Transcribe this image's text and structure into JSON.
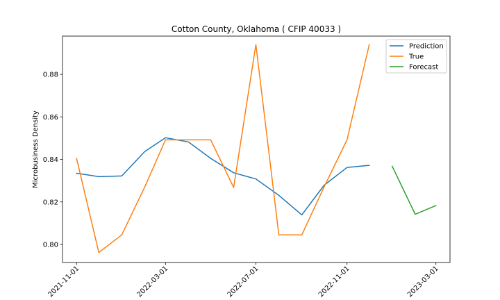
{
  "chart_data": {
    "type": "line",
    "title": "Cotton County, Oklahoma ( CFIP 40033 )",
    "xlabel": "",
    "ylabel": "Microbusiness Density",
    "xlim": [
      "2021-10-13",
      "2023-03-20"
    ],
    "ylim": [
      0.7915,
      0.898
    ],
    "x_ticks": [
      "2021-11-01",
      "2022-03-01",
      "2022-07-01",
      "2022-11-01",
      "2023-03-01"
    ],
    "y_ticks": [
      0.8,
      0.82,
      0.84,
      0.86,
      0.88
    ],
    "y_tick_labels": [
      "0.80",
      "0.82",
      "0.84",
      "0.86",
      "0.88"
    ],
    "legend_placement": "top-right",
    "grid": false,
    "series": [
      {
        "name": "Prediction",
        "color": "#1f77b4",
        "x": [
          "2021-11-01",
          "2021-12-01",
          "2022-01-01",
          "2022-02-01",
          "2022-03-01",
          "2022-04-01",
          "2022-05-01",
          "2022-06-01",
          "2022-07-01",
          "2022-08-01",
          "2022-09-01",
          "2022-10-01",
          "2022-11-01",
          "2022-12-01"
        ],
        "values": [
          0.8335,
          0.8319,
          0.8322,
          0.8437,
          0.8502,
          0.8482,
          0.8405,
          0.8337,
          0.8308,
          0.8231,
          0.8139,
          0.8278,
          0.8362,
          0.8372
        ]
      },
      {
        "name": "True",
        "color": "#ff7f0e",
        "x": [
          "2021-11-01",
          "2021-12-01",
          "2022-01-01",
          "2022-02-01",
          "2022-03-01",
          "2022-04-01",
          "2022-05-01",
          "2022-06-01",
          "2022-07-01",
          "2022-08-01",
          "2022-09-01",
          "2022-10-01",
          "2022-11-01",
          "2022-12-01"
        ],
        "values": [
          0.8405,
          0.7962,
          0.8045,
          0.827,
          0.8492,
          0.8492,
          0.8492,
          0.8268,
          0.894,
          0.8045,
          0.8045,
          0.827,
          0.8492,
          0.894
        ]
      },
      {
        "name": "Forecast",
        "color": "#2ca02c",
        "x": [
          "2023-01-01",
          "2023-02-01",
          "2023-03-01"
        ],
        "values": [
          0.8368,
          0.8142,
          0.8183
        ]
      }
    ]
  }
}
